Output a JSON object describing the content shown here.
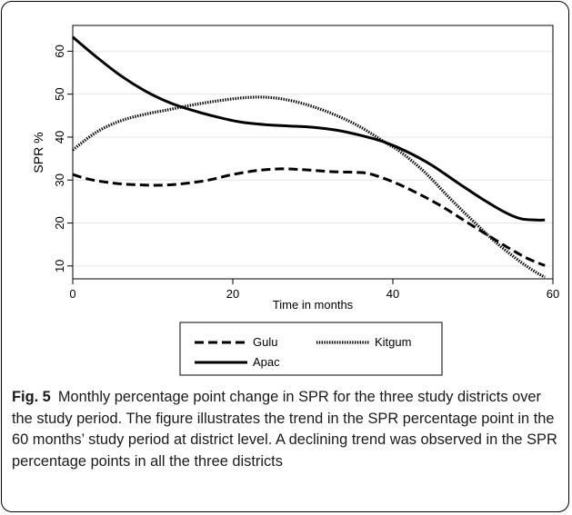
{
  "chart_data": {
    "type": "line",
    "xlabel": "Time in months",
    "ylabel": "SPR %",
    "xlim": [
      0,
      60
    ],
    "ylim": [
      7,
      66
    ],
    "xticks": [
      0,
      20,
      40,
      60
    ],
    "yticks": [
      10,
      20,
      30,
      40,
      50,
      60
    ],
    "grid": "horizontal",
    "legend_position": "bottom",
    "series": [
      {
        "name": "Gulu",
        "style": "dashed",
        "x": [
          0,
          2,
          5,
          8,
          11,
          14,
          17,
          20,
          23,
          26,
          29,
          32,
          35,
          37,
          40,
          43,
          46,
          49,
          52,
          55,
          57,
          59
        ],
        "y": [
          31.3,
          30.2,
          29.3,
          28.9,
          28.8,
          29.2,
          30.0,
          31.3,
          32.2,
          32.6,
          32.4,
          32.0,
          31.8,
          31.5,
          29.6,
          27.0,
          24.0,
          20.5,
          17.0,
          13.6,
          11.6,
          10.1
        ]
      },
      {
        "name": "Kitgum",
        "style": "dotted",
        "x": [
          0,
          3,
          6,
          9,
          12,
          15,
          18,
          21,
          24,
          27,
          30,
          33,
          36,
          39,
          41,
          44,
          47,
          50,
          53,
          56,
          58,
          59
        ],
        "y": [
          37.0,
          41.2,
          43.8,
          45.3,
          46.4,
          47.5,
          48.4,
          49.1,
          49.3,
          48.6,
          47.1,
          45.0,
          42.3,
          38.8,
          36.5,
          31.8,
          26.0,
          20.5,
          15.3,
          10.9,
          8.4,
          7.4
        ]
      },
      {
        "name": "Apac",
        "style": "solid",
        "x": [
          0,
          3,
          6,
          9,
          12,
          15,
          18,
          21,
          24,
          27,
          30,
          33,
          36,
          39,
          42,
          45,
          48,
          51,
          54,
          56,
          58,
          59
        ],
        "y": [
          63.3,
          58.6,
          54.3,
          50.8,
          48.1,
          46.2,
          44.7,
          43.5,
          42.9,
          42.6,
          42.3,
          41.6,
          40.4,
          38.8,
          36.4,
          33.3,
          29.5,
          25.8,
          22.5,
          21.0,
          20.7,
          20.7
        ]
      }
    ]
  },
  "caption": {
    "label": "Fig. 5",
    "text": "Monthly percentage point change in SPR for the three study districts over the study period. The figure illustrates the trend in the SPR percentage point in the 60 months’ study period at district level. A declining trend was observed in the SPR percentage points in all the three districts"
  },
  "colors": {
    "line": "#000000",
    "grid": "#e6e6e6",
    "text": "#1a1a1a"
  }
}
